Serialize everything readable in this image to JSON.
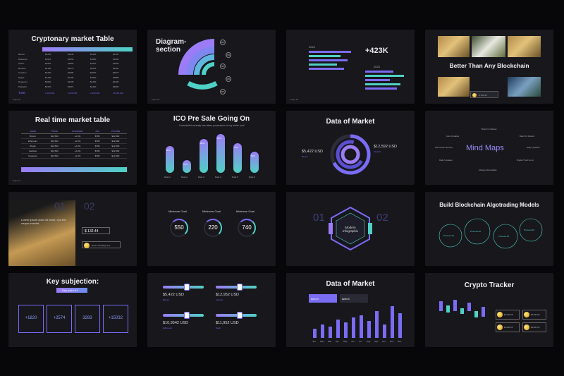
{
  "colors": {
    "background": "#070709",
    "slide": "#17171c",
    "accent_purple": "#7b6cf6",
    "accent_teal": "#4fd1c5",
    "gold": "#f2c318"
  },
  "slides": {
    "s1": {
      "title": "Cryptonary market Table",
      "page": "Page 02",
      "rows": [
        "Bitcoin",
        "Ethereum",
        "Tether",
        "Binance",
        "Cardano",
        "Ripple",
        "Dogecoin",
        "Polkadot"
      ],
      "total_label": "Total",
      "totals": [
        "1,000,000",
        "2,000,000",
        "2,400,000",
        "15,000,000"
      ]
    },
    "s2": {
      "title": "Diagram-\nsection",
      "labels": [
        "90%",
        "80%",
        "70%",
        "60%",
        "50%"
      ]
    },
    "s3": {
      "big": "+423K",
      "year1": "2022",
      "year2": "2023"
    },
    "s4": {
      "title": "Better Than Any Blockchain",
      "badge": "$ 132.44"
    },
    "s5": {
      "title": "Real time market table",
      "headers": [
        "NAME",
        "PRICE",
        "ECHANGE",
        "24H",
        "VOLUME"
      ],
      "rows": [
        [
          "Bitcoin",
          "$12,593",
          "+2.4%",
          "$786",
          "$12,590"
        ],
        [
          "Ethereum",
          "$12,593",
          "+2.4%",
          "$786",
          "$12,590"
        ],
        [
          "Ripple",
          "$12,593",
          "+2.4%",
          "$786",
          "$12,590"
        ],
        [
          "Cardano",
          "$12,593",
          "+2.4%",
          "$786",
          "$12,590"
        ],
        [
          "Dogecoin",
          "$12,593",
          "+2.4%",
          "$786",
          "$12,590"
        ]
      ]
    },
    "s6": {
      "title": "ICO Pre Sale Going On",
      "subtitle": "A wonderful serenity has taken possession of my entire soul",
      "bars": [
        {
          "label": "Data 1",
          "value": "60%"
        },
        {
          "label": "Data 2",
          "value": "25%"
        },
        {
          "label": "Data 3",
          "value": "80%"
        },
        {
          "label": "Data 4",
          "value": "95%"
        },
        {
          "label": "Data 5",
          "value": "70%"
        },
        {
          "label": "Data 6",
          "value": "50%"
        }
      ]
    },
    "s7": {
      "title": "Data of Market",
      "left_value": "$5,422 USD",
      "left_coin": "Bitcoin",
      "right_value": "$12,592 USD",
      "right_coin": "Litecoin"
    },
    "s8": {
      "title": "Mind Maps",
      "nodes": [
        "Auto Updates",
        "Build On Market",
        "Best On Market",
        "Permission Ensure",
        "Daily Updates",
        "Daily Updates",
        "Digital Trust Fund",
        "Always Refundable"
      ]
    },
    "s9": {
      "num_left": "01",
      "num_right": "02",
      "caption": "Lorem ipsum dolor sit amet. Qui elit neque eveniet",
      "price": "$ 132.44",
      "pill": "News Trending One"
    },
    "s10": {
      "goals": [
        {
          "label": "Minimum Goal",
          "value": "550"
        },
        {
          "label": "Minimum Goal",
          "value": "220"
        },
        {
          "label": "Minimum Goal",
          "value": "740"
        }
      ]
    },
    "s11": {
      "num_left": "01",
      "num_right": "02",
      "center": "Modern Infographic"
    },
    "s12": {
      "title": "Build Blockchain Algotrading Models",
      "processes": [
        "Process #1",
        "Process #2",
        "Process #3",
        "Process #4"
      ]
    },
    "s13": {
      "title": "Key subjection:",
      "tag": "Key point #1",
      "values": [
        "+1820",
        "+2574",
        "3283",
        "+15032"
      ]
    },
    "s14": {
      "items": [
        {
          "value": "$5,422 USD",
          "coin": "Bitcoin"
        },
        {
          "value": "$12,952 USD",
          "coin": "Litecoin"
        },
        {
          "value": "$10,9542 USD",
          "coin": "Ethereum"
        },
        {
          "value": "$11,952 USD",
          "coin": "Dash"
        }
      ]
    },
    "s15": {
      "title": "Data of Market",
      "card1": "$295.55",
      "card2": "$288.55",
      "months": [
        "Jan",
        "Feb",
        "Mar",
        "Apr",
        "May",
        "Jun",
        "Jul",
        "Aug",
        "Sep",
        "Oct",
        "Nov",
        "Dec"
      ]
    },
    "s16": {
      "title": "Crypto Tracker",
      "cards": [
        "$2190.55",
        "$2190.55",
        "$2190.55",
        "$2190.55"
      ]
    }
  }
}
